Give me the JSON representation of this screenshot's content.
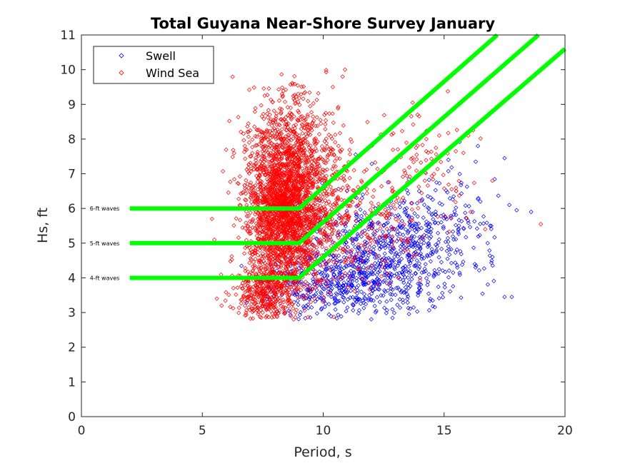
{
  "chart_data": {
    "type": "scatter",
    "title": "Total Guyana Near-Shore Survey January",
    "xlabel": "Period, s",
    "ylabel": "Hs, ft",
    "xlim": [
      0,
      20
    ],
    "ylim": [
      0,
      11
    ],
    "xticks": [
      0,
      5,
      10,
      15,
      20
    ],
    "yticks": [
      0,
      1,
      2,
      3,
      4,
      5,
      6,
      7,
      8,
      9,
      10,
      11
    ],
    "grid": false,
    "legend_position": "top-left",
    "series": [
      {
        "name": "Swell",
        "color": "#0000ff",
        "marker": "diamond-open",
        "clusters": [
          {
            "cx": 12.5,
            "cy": 4.6,
            "sx": 1.6,
            "sy": 0.9,
            "n": 650
          },
          {
            "cx": 10.8,
            "cy": 3.8,
            "sx": 0.9,
            "sy": 0.5,
            "n": 200
          },
          {
            "cx": 15.0,
            "cy": 5.2,
            "sx": 1.2,
            "sy": 0.9,
            "n": 160
          },
          {
            "cx": 9.0,
            "cy": 3.7,
            "sx": 0.9,
            "sy": 0.45,
            "n": 120
          }
        ],
        "points": [
          {
            "x": 17.5,
            "y": 3.45
          },
          {
            "x": 17.8,
            "y": 3.45
          },
          {
            "x": 18.6,
            "y": 5.9
          },
          {
            "x": 18.0,
            "y": 5.95
          },
          {
            "x": 17.7,
            "y": 6.1
          },
          {
            "x": 17.5,
            "y": 7.45
          },
          {
            "x": 16.5,
            "y": 6.2
          },
          {
            "x": 16.4,
            "y": 7.8
          },
          {
            "x": 16.8,
            "y": 5.0
          },
          {
            "x": 17.0,
            "y": 4.6
          },
          {
            "x": 16.3,
            "y": 4.3
          },
          {
            "x": 16.9,
            "y": 5.5
          }
        ]
      },
      {
        "name": "Wind Sea",
        "color": "#ff0000",
        "marker": "diamond-open",
        "clusters": [
          {
            "cx": 8.3,
            "cy": 6.0,
            "sx": 0.75,
            "sy": 1.35,
            "n": 2300
          },
          {
            "cx": 7.6,
            "cy": 3.6,
            "sx": 0.6,
            "sy": 0.45,
            "n": 320
          },
          {
            "cx": 9.2,
            "cy": 6.8,
            "sx": 0.55,
            "sy": 1.2,
            "n": 380
          },
          {
            "cx": 10.3,
            "cy": 6.6,
            "sx": 0.55,
            "sy": 1.3,
            "n": 170
          },
          {
            "cx": 11.5,
            "cy": 5.6,
            "sx": 1.3,
            "sy": 1.0,
            "n": 210
          },
          {
            "cx": 14.2,
            "cy": 7.0,
            "sx": 1.0,
            "sy": 0.8,
            "n": 80
          }
        ],
        "points": [
          {
            "x": 10.9,
            "y": 10.0
          },
          {
            "x": 10.8,
            "y": 9.8
          },
          {
            "x": 10.4,
            "y": 9.5
          },
          {
            "x": 19.0,
            "y": 5.55
          },
          {
            "x": 16.2,
            "y": 8.25
          },
          {
            "x": 16.0,
            "y": 8.1
          },
          {
            "x": 15.8,
            "y": 7.6
          },
          {
            "x": 13.7,
            "y": 9.05
          },
          {
            "x": 13.9,
            "y": 8.7
          },
          {
            "x": 17.0,
            "y": 6.8
          },
          {
            "x": 15.5,
            "y": 6.5
          },
          {
            "x": 16.1,
            "y": 5.9
          },
          {
            "x": 16.7,
            "y": 5.4
          },
          {
            "x": 14.8,
            "y": 8.1
          },
          {
            "x": 5.6,
            "y": 3.4
          },
          {
            "x": 5.4,
            "y": 5.7
          },
          {
            "x": 5.5,
            "y": 5.1
          },
          {
            "x": 5.8,
            "y": 3.2
          }
        ]
      }
    ],
    "threshold_lines": [
      {
        "label": "6-ft waves",
        "color": "#00ff00",
        "points": [
          [
            2,
            6
          ],
          [
            9,
            6
          ],
          [
            17.2,
            11
          ]
        ]
      },
      {
        "label": "5-ft waves",
        "color": "#00ff00",
        "points": [
          [
            2,
            5
          ],
          [
            9,
            5
          ],
          [
            18.9,
            11
          ]
        ]
      },
      {
        "label": "4-ft waves",
        "color": "#00ff00",
        "points": [
          [
            2,
            4
          ],
          [
            9,
            4
          ],
          [
            20,
            10.6
          ]
        ]
      }
    ]
  }
}
